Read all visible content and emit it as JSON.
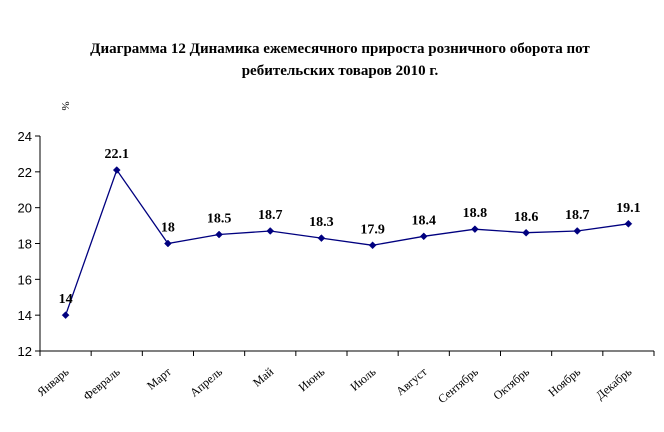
{
  "chart_data": {
    "type": "line",
    "title_lines": [
      "Диаграмма 12 Динамика ежемесячного прироста розничного оборота пот",
      "ребительских товаров 2010 г."
    ],
    "ylabel": "%",
    "xlabel": "",
    "ylim": [
      12,
      24
    ],
    "yticks": [
      12,
      14,
      16,
      18,
      20,
      22,
      24
    ],
    "categories": [
      "Январь",
      "Февраль",
      "Март",
      "Апрель",
      "Май",
      "Июнь",
      "Июль",
      "Август",
      "Сентябрь",
      "Октябрь",
      "Ноябрь",
      "Декабрь"
    ],
    "series": [
      {
        "values": [
          14,
          22.1,
          18,
          18.5,
          18.7,
          18.3,
          17.9,
          18.4,
          18.8,
          18.6,
          18.7,
          19.1
        ],
        "labels": [
          "14",
          "22.1",
          "18",
          "18.5",
          "18.7",
          "18.3",
          "17.9",
          "18.4",
          "18.8",
          "18.6",
          "18.7",
          "19.1"
        ],
        "color": "#00007f"
      }
    ],
    "grid": false,
    "legend": "none"
  }
}
